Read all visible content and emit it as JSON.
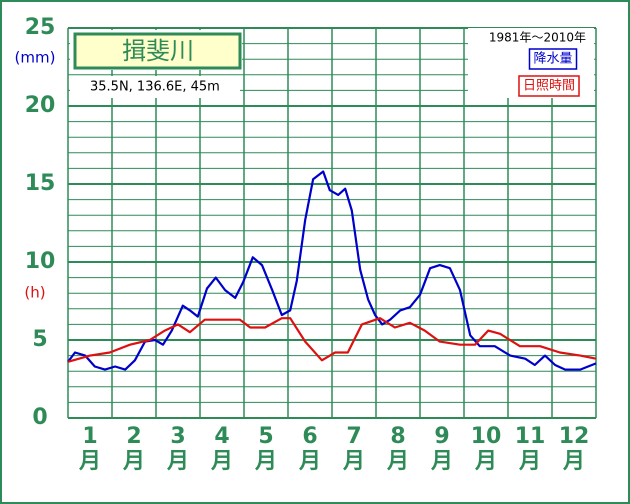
{
  "chart_data": {
    "type": "line",
    "title": "揖斐川",
    "subtitle": "35.5N,  136.6E,  45m",
    "period": "1981年～2010年",
    "y_unit_left": "(mm)",
    "y_unit_right": "(h)",
    "x_unit": "月",
    "xlim": [
      0.5,
      12.5
    ],
    "xticks": [
      1,
      2,
      3,
      4,
      5,
      6,
      7,
      8,
      9,
      10,
      11,
      12
    ],
    "xgrid": [
      0.5,
      1.5,
      2.5,
      3.5,
      4.5,
      5.5,
      6.5,
      7.5,
      8.5,
      9.5,
      10.5,
      11.5,
      12.5
    ],
    "ylim": [
      0,
      25
    ],
    "yticks": [
      0,
      5,
      10,
      15,
      20,
      25
    ],
    "minor_yticks": [
      1,
      2,
      3,
      4,
      6,
      7,
      8,
      9,
      11,
      12,
      13,
      14,
      16,
      17,
      18,
      19,
      21,
      22,
      23,
      24
    ],
    "grid_color": "#2e8b57",
    "series": [
      {
        "name": "降水量",
        "color": "#0000cc",
        "x": [
          0.5,
          0.66,
          0.89,
          1.11,
          1.34,
          1.57,
          1.8,
          2.02,
          2.25,
          2.48,
          2.66,
          2.86,
          3.11,
          3.27,
          3.45,
          3.66,
          3.86,
          4.07,
          4.3,
          4.48,
          4.7,
          4.91,
          5.14,
          5.36,
          5.55,
          5.7,
          5.89,
          6.07,
          6.3,
          6.45,
          6.64,
          6.8,
          6.95,
          7.14,
          7.32,
          7.48,
          7.64,
          7.82,
          8.05,
          8.27,
          8.5,
          8.73,
          8.95,
          9.18,
          9.41,
          9.64,
          9.86,
          10.2,
          10.55,
          10.89,
          11.11,
          11.34,
          11.57,
          11.8,
          12.14,
          12.5
        ],
        "values": [
          3.6,
          4.2,
          4.0,
          3.3,
          3.1,
          3.3,
          3.1,
          3.7,
          4.9,
          5.0,
          4.7,
          5.6,
          7.2,
          6.9,
          6.5,
          8.3,
          9.0,
          8.2,
          7.7,
          8.7,
          10.3,
          9.8,
          8.2,
          6.6,
          6.9,
          8.8,
          12.7,
          15.3,
          15.8,
          14.6,
          14.3,
          14.7,
          13.3,
          9.5,
          7.6,
          6.6,
          6.0,
          6.3,
          6.9,
          7.1,
          7.9,
          9.6,
          9.8,
          9.6,
          8.2,
          5.3,
          4.6,
          4.6,
          4.0,
          3.8,
          3.4,
          4.0,
          3.4,
          3.1,
          3.1,
          3.5
        ]
      },
      {
        "name": "日照時間",
        "color": "#dd1111",
        "x": [
          0.5,
          1.0,
          1.45,
          1.91,
          2.36,
          2.7,
          3.0,
          3.27,
          3.61,
          4.07,
          4.41,
          4.64,
          4.98,
          5.36,
          5.55,
          5.89,
          6.27,
          6.57,
          6.86,
          7.18,
          7.59,
          7.93,
          8.27,
          8.61,
          8.95,
          9.41,
          9.75,
          10.05,
          10.32,
          10.77,
          11.23,
          11.68,
          12.14,
          12.5
        ],
        "values": [
          3.6,
          4.0,
          4.2,
          4.7,
          5.0,
          5.6,
          6.0,
          5.5,
          6.3,
          6.3,
          6.3,
          5.8,
          5.8,
          6.4,
          6.4,
          4.9,
          3.7,
          4.2,
          4.2,
          6.0,
          6.4,
          5.8,
          6.1,
          5.6,
          4.9,
          4.7,
          4.7,
          5.6,
          5.4,
          4.6,
          4.6,
          4.2,
          4.0,
          3.8
        ]
      }
    ]
  }
}
